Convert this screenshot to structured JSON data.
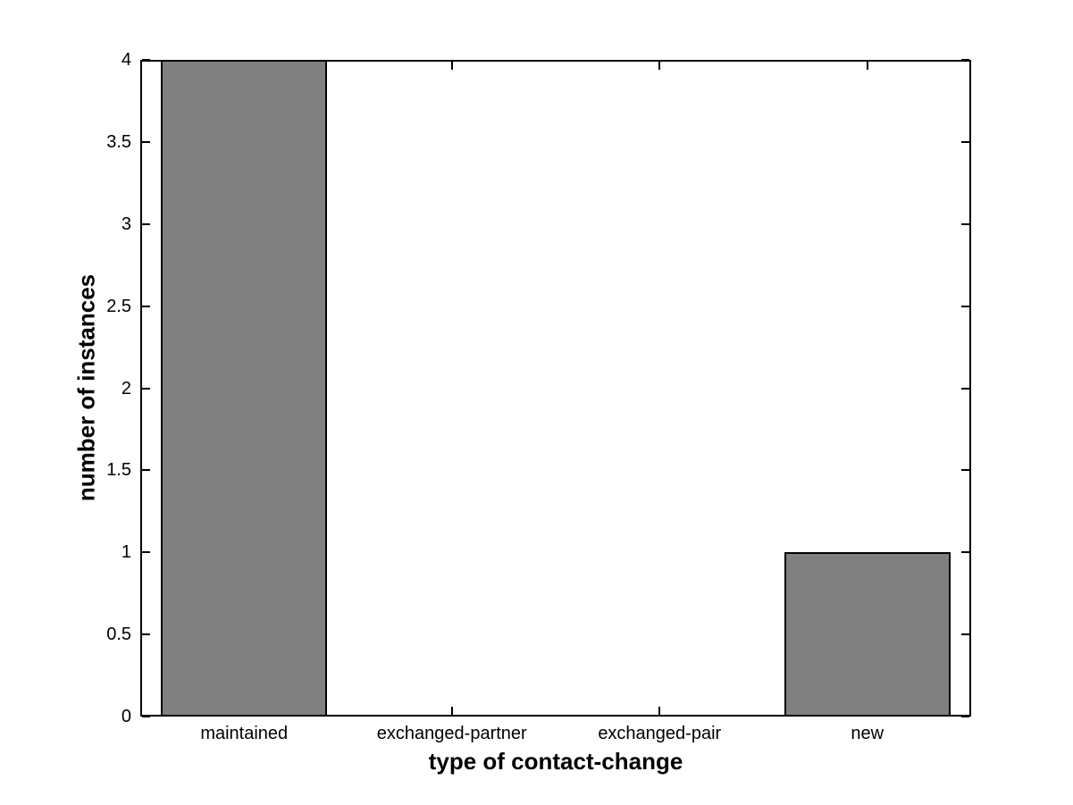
{
  "chart_data": {
    "type": "bar",
    "categories": [
      "maintained",
      "exchanged-partner",
      "exchanged-pair",
      "new"
    ],
    "values": [
      4,
      0,
      0,
      1
    ],
    "xlabel": "type of contact-change",
    "ylabel": "number of instances",
    "ylim": [
      0,
      4
    ],
    "yticks": [
      0,
      0.5,
      1,
      1.5,
      2,
      2.5,
      3,
      3.5,
      4
    ],
    "ytick_labels": [
      "0",
      "0.5",
      "1",
      "1.5",
      "2",
      "2.5",
      "3",
      "3.5",
      "4"
    ],
    "bar_width_fraction": 0.8,
    "bar_color": "#808080",
    "bar_edge_color": "#000000",
    "axis_color": "#000000",
    "background_color": "#ffffff",
    "grid": false,
    "tick_direction": "in",
    "box": true
  }
}
